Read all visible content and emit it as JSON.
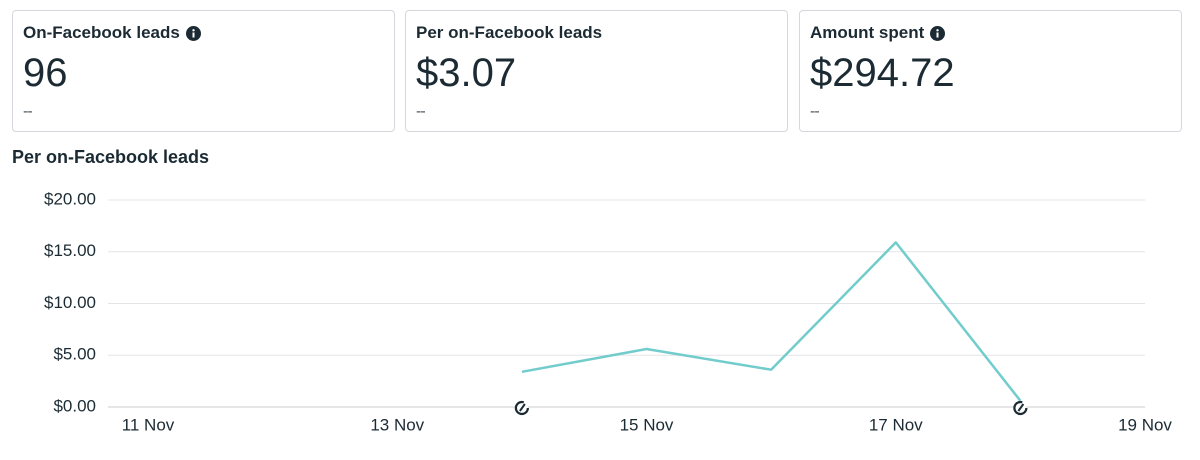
{
  "cards": [
    {
      "title": "On-Facebook leads",
      "value": "96",
      "change": "--"
    },
    {
      "title": "Per on-Facebook leads",
      "value": "$3.07",
      "change": "--"
    },
    {
      "title": "Amount spent",
      "value": "$294.72",
      "change": "--"
    }
  ],
  "chart_data": {
    "type": "line",
    "title": "Per on-Facebook leads",
    "categories": [
      "11 Nov",
      null,
      "13 Nov",
      null,
      "15 Nov",
      null,
      "17 Nov",
      null,
      "19 Nov"
    ],
    "values": [
      null,
      null,
      null,
      3.4,
      5.6,
      3.6,
      15.9,
      0.6,
      null
    ],
    "color": "#72cccc",
    "ylim": [
      0,
      20
    ],
    "yticks": [
      {
        "value": 0,
        "label": "$0.00"
      },
      {
        "value": 5,
        "label": "$5.00"
      },
      {
        "value": 10,
        "label": "$10.00"
      },
      {
        "value": 15,
        "label": "$15.00"
      },
      {
        "value": 20,
        "label": "$20.00"
      }
    ],
    "grid": true
  }
}
